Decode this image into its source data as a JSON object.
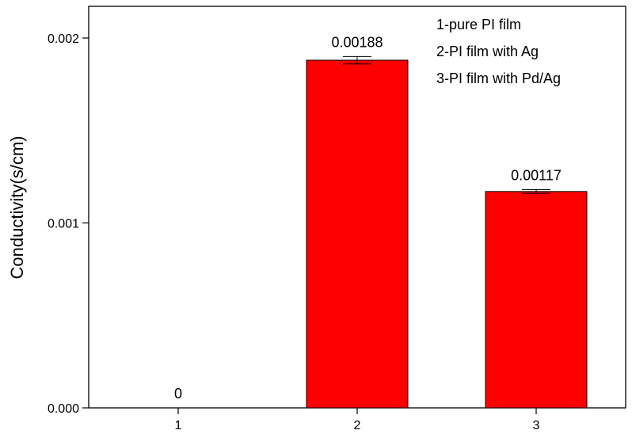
{
  "chart_data": {
    "type": "bar",
    "categories": [
      "1",
      "2",
      "3"
    ],
    "values": [
      0,
      0.00188,
      0.00117
    ],
    "errors": [
      0,
      2e-05,
      1e-05
    ],
    "data_labels": [
      "0",
      "0.00188",
      "0.00117"
    ],
    "title": "",
    "xlabel": "",
    "ylabel": "Conductivity(s/cm)",
    "ylim": [
      0,
      0.0022
    ],
    "yticks": [
      0,
      0.001,
      0.002
    ],
    "ytick_labels": [
      "0.000",
      "0.001",
      "0.002"
    ],
    "bar_color": "#ff0000",
    "grid": false,
    "legend_position": "top-right",
    "legend": [
      "1-pure PI film",
      "2-PI film with Ag",
      "3-PI film with Pd/Ag"
    ]
  }
}
